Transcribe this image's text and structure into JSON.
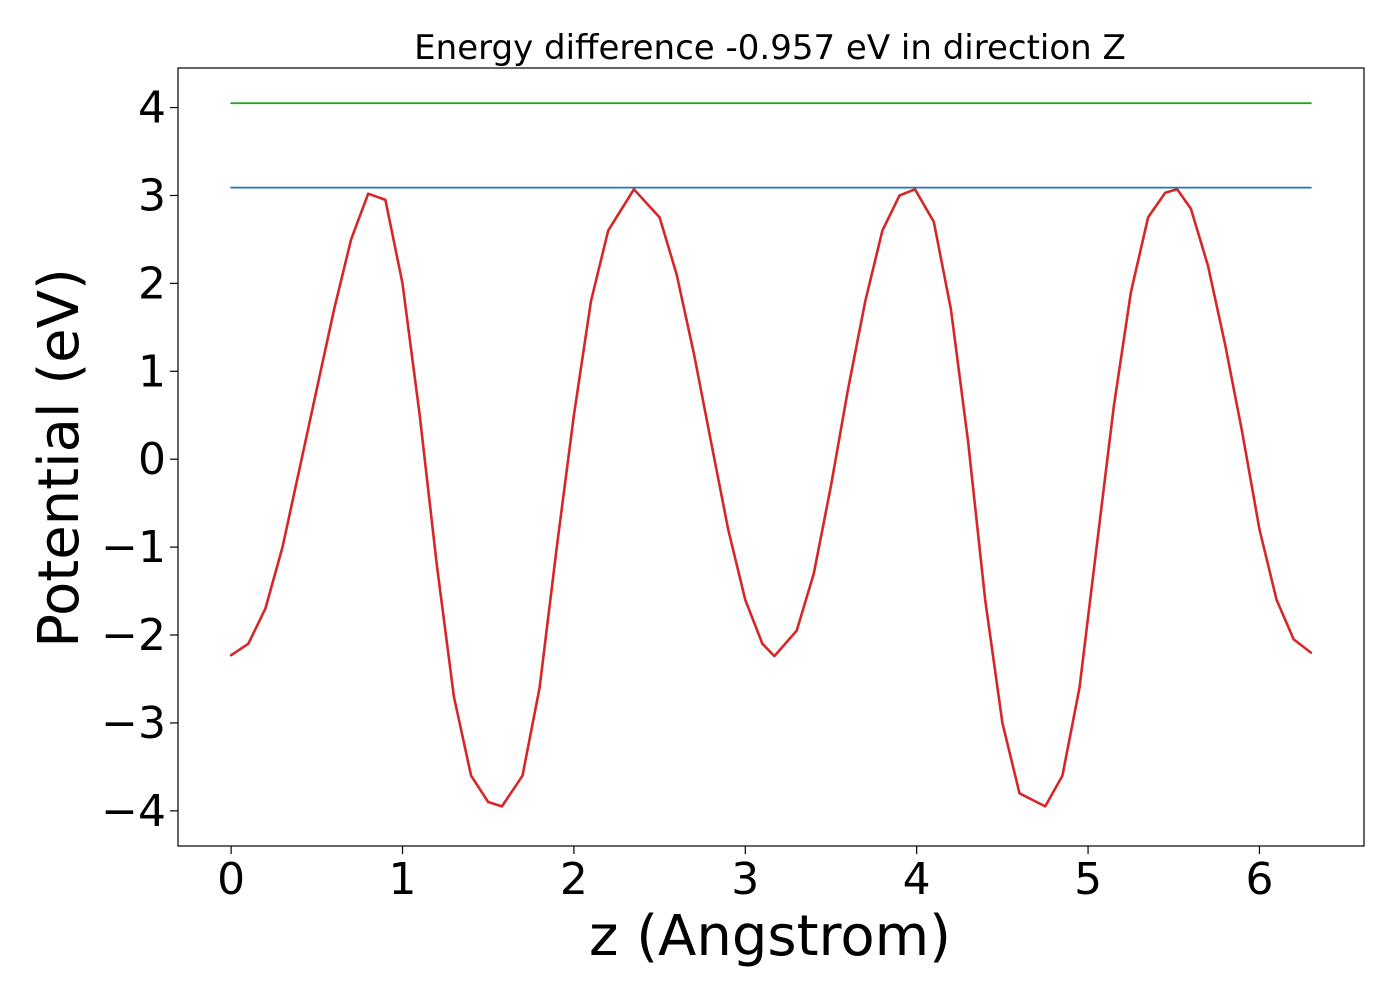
{
  "chart_data": {
    "type": "line",
    "title": "Energy difference -0.957 eV in direction Z",
    "xlabel": "z (Angstrom)",
    "ylabel": "Potential (eV)",
    "xlim": [
      -0.31,
      6.61
    ],
    "ylim": [
      -4.4,
      4.45
    ],
    "xticks": [
      0,
      1,
      2,
      3,
      4,
      5,
      6
    ],
    "xtick_labels": [
      "0",
      "1",
      "2",
      "3",
      "4",
      "5",
      "6"
    ],
    "yticks": [
      -4,
      -3,
      -2,
      -1,
      0,
      1,
      2,
      3,
      4
    ],
    "ytick_labels": [
      "−4",
      "−3",
      "−2",
      "−1",
      "0",
      "1",
      "2",
      "3",
      "4"
    ],
    "grid": false,
    "legend": "none",
    "series": [
      {
        "color": "#d62728",
        "x": [
          0.0,
          0.1,
          0.2,
          0.3,
          0.4,
          0.5,
          0.6,
          0.7,
          0.8,
          0.9,
          1.0,
          1.1,
          1.2,
          1.3,
          1.4,
          1.5,
          1.58,
          1.7,
          1.8,
          1.9,
          2.0,
          2.1,
          2.2,
          2.35,
          2.5,
          2.6,
          2.7,
          2.8,
          2.9,
          3.0,
          3.1,
          3.17,
          3.3,
          3.4,
          3.5,
          3.6,
          3.7,
          3.8,
          3.9,
          3.99,
          4.1,
          4.2,
          4.3,
          4.4,
          4.5,
          4.6,
          4.75,
          4.85,
          4.95,
          5.05,
          5.15,
          5.25,
          5.35,
          5.45,
          5.52,
          5.6,
          5.7,
          5.8,
          5.9,
          6.0,
          6.1,
          6.2,
          6.3
        ],
        "y": [
          -2.23,
          -2.1,
          -1.7,
          -1.0,
          -0.1,
          0.8,
          1.7,
          2.5,
          3.02,
          2.95,
          2.0,
          0.5,
          -1.2,
          -2.7,
          -3.6,
          -3.9,
          -3.95,
          -3.6,
          -2.6,
          -1.0,
          0.5,
          1.8,
          2.6,
          3.07,
          2.75,
          2.1,
          1.2,
          0.2,
          -0.8,
          -1.6,
          -2.1,
          -2.24,
          -1.95,
          -1.3,
          -0.3,
          0.8,
          1.8,
          2.6,
          3.0,
          3.07,
          2.7,
          1.7,
          0.2,
          -1.6,
          -3.0,
          -3.8,
          -3.95,
          -3.6,
          -2.6,
          -1.0,
          0.6,
          1.9,
          2.75,
          3.03,
          3.07,
          2.85,
          2.2,
          1.3,
          0.3,
          -0.8,
          -1.6,
          -2.05,
          -2.2
        ]
      },
      {
        "color": "#1f77b4",
        "x": [
          0.0,
          6.3
        ],
        "y": [
          3.09,
          3.09
        ]
      },
      {
        "color": "#2ca02c",
        "x": [
          0.0,
          6.3
        ],
        "y": [
          4.05,
          4.05
        ]
      }
    ]
  }
}
